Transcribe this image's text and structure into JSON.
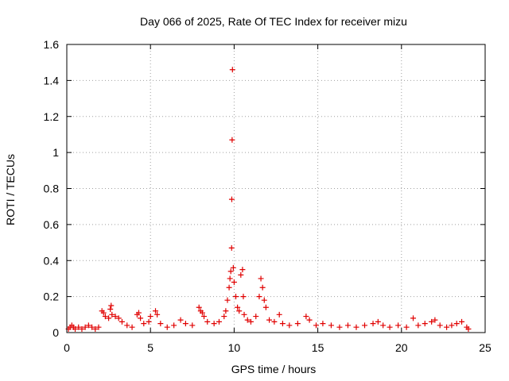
{
  "chart_data": {
    "type": "scatter",
    "title": "Day 066 of 2025, Rate Of TEC Index for receiver mizu",
    "xlabel": "GPS time / hours",
    "ylabel": "ROTI / TECUs",
    "xlim": [
      0,
      25
    ],
    "ylim": [
      0,
      1.6
    ],
    "xticks": [
      0,
      5,
      10,
      15,
      20,
      25
    ],
    "yticks": [
      0,
      0.2,
      0.4,
      0.6,
      0.8,
      1,
      1.2,
      1.4,
      1.6
    ],
    "ytick_labels": [
      "0",
      "0.2",
      "0.4",
      "0.6",
      "0.8",
      "1",
      "1.2",
      "1.4",
      "1.6"
    ],
    "grid": true,
    "marker": "+",
    "color": "#e00000",
    "series": [
      {
        "points": [
          [
            0.1,
            0.02
          ],
          [
            0.2,
            0.03
          ],
          [
            0.3,
            0.04
          ],
          [
            0.4,
            0.03
          ],
          [
            0.5,
            0.02
          ],
          [
            0.7,
            0.03
          ],
          [
            0.9,
            0.02
          ],
          [
            1.1,
            0.03
          ],
          [
            1.3,
            0.04
          ],
          [
            1.5,
            0.03
          ],
          [
            1.7,
            0.02
          ],
          [
            1.9,
            0.03
          ],
          [
            2.1,
            0.12
          ],
          [
            2.2,
            0.11
          ],
          [
            2.3,
            0.09
          ],
          [
            2.5,
            0.08
          ],
          [
            2.6,
            0.13
          ],
          [
            2.65,
            0.15
          ],
          [
            2.7,
            0.1
          ],
          [
            2.9,
            0.09
          ],
          [
            3.1,
            0.08
          ],
          [
            3.3,
            0.06
          ],
          [
            3.6,
            0.04
          ],
          [
            3.9,
            0.03
          ],
          [
            4.2,
            0.1
          ],
          [
            4.3,
            0.11
          ],
          [
            4.4,
            0.08
          ],
          [
            4.6,
            0.05
          ],
          [
            4.9,
            0.06
          ],
          [
            5.0,
            0.09
          ],
          [
            5.3,
            0.12
          ],
          [
            5.4,
            0.1
          ],
          [
            5.6,
            0.05
          ],
          [
            6.0,
            0.03
          ],
          [
            6.4,
            0.04
          ],
          [
            6.8,
            0.07
          ],
          [
            7.1,
            0.05
          ],
          [
            7.5,
            0.04
          ],
          [
            7.9,
            0.14
          ],
          [
            8.0,
            0.12
          ],
          [
            8.1,
            0.11
          ],
          [
            8.2,
            0.09
          ],
          [
            8.4,
            0.06
          ],
          [
            8.8,
            0.05
          ],
          [
            9.1,
            0.06
          ],
          [
            9.4,
            0.09
          ],
          [
            9.5,
            0.12
          ],
          [
            9.6,
            0.18
          ],
          [
            9.7,
            0.25
          ],
          [
            9.75,
            0.3
          ],
          [
            9.8,
            0.34
          ],
          [
            9.85,
            0.47
          ],
          [
            9.86,
            0.74
          ],
          [
            9.88,
            1.07
          ],
          [
            9.9,
            1.46
          ],
          [
            9.95,
            0.36
          ],
          [
            10.0,
            0.28
          ],
          [
            10.1,
            0.2
          ],
          [
            10.2,
            0.14
          ],
          [
            10.3,
            0.12
          ],
          [
            10.4,
            0.32
          ],
          [
            10.5,
            0.35
          ],
          [
            10.55,
            0.2
          ],
          [
            10.6,
            0.1
          ],
          [
            10.8,
            0.07
          ],
          [
            11.0,
            0.06
          ],
          [
            11.3,
            0.09
          ],
          [
            11.5,
            0.2
          ],
          [
            11.6,
            0.3
          ],
          [
            11.7,
            0.25
          ],
          [
            11.8,
            0.18
          ],
          [
            11.9,
            0.14
          ],
          [
            12.1,
            0.07
          ],
          [
            12.4,
            0.06
          ],
          [
            12.7,
            0.1
          ],
          [
            12.9,
            0.05
          ],
          [
            13.3,
            0.04
          ],
          [
            13.8,
            0.05
          ],
          [
            14.3,
            0.09
          ],
          [
            14.5,
            0.07
          ],
          [
            14.9,
            0.04
          ],
          [
            15.3,
            0.05
          ],
          [
            15.8,
            0.04
          ],
          [
            16.3,
            0.03
          ],
          [
            16.8,
            0.04
          ],
          [
            17.3,
            0.03
          ],
          [
            17.8,
            0.04
          ],
          [
            18.3,
            0.05
          ],
          [
            18.6,
            0.06
          ],
          [
            18.9,
            0.04
          ],
          [
            19.3,
            0.03
          ],
          [
            19.8,
            0.04
          ],
          [
            20.3,
            0.03
          ],
          [
            20.7,
            0.08
          ],
          [
            21.0,
            0.04
          ],
          [
            21.4,
            0.05
          ],
          [
            21.8,
            0.06
          ],
          [
            22.0,
            0.07
          ],
          [
            22.3,
            0.04
          ],
          [
            22.7,
            0.03
          ],
          [
            23.0,
            0.04
          ],
          [
            23.3,
            0.05
          ],
          [
            23.6,
            0.06
          ],
          [
            23.9,
            0.03
          ],
          [
            24.0,
            0.02
          ]
        ]
      }
    ]
  }
}
